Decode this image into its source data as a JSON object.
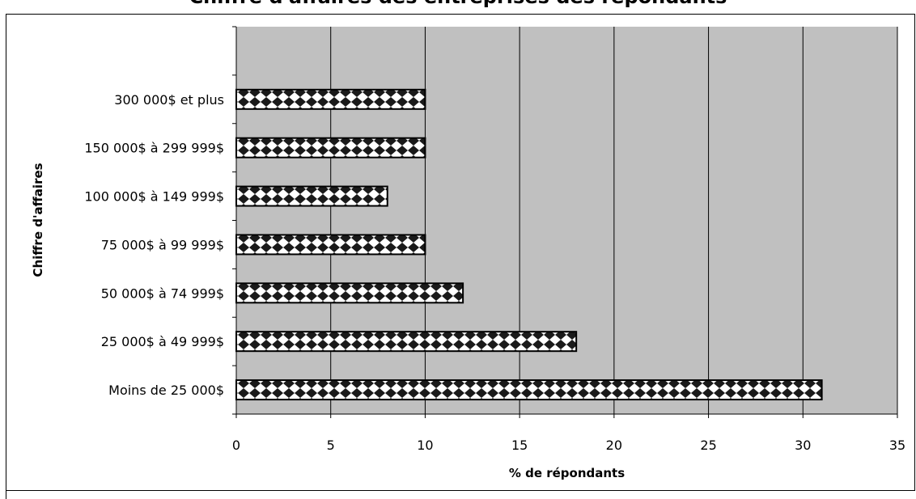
{
  "title": "Chiffre d'affaires des entreprises des répondants",
  "colors": {
    "plot_background": "#c0c0c0",
    "bar_fill_light": "#ffffff",
    "bar_fill_dark": "#1a1a1a",
    "axis": "#000000"
  },
  "chart_data": {
    "type": "bar",
    "orientation": "horizontal",
    "categories": [
      "Moins de 25 000$",
      "25 000$ à 49 999$",
      "50 000$ à 74 999$",
      "75 000$ à 99 999$",
      "100 000$ à 149 999$",
      "150 000$ à 299 999$",
      "300 000$ et plus"
    ],
    "values": [
      31,
      18,
      12,
      10,
      8,
      10,
      10
    ],
    "xlabel": "% de répondants",
    "ylabel": "Chiffre d'affaires",
    "xlim": [
      0,
      35
    ],
    "xticks": [
      "0",
      "5",
      "10",
      "15",
      "20",
      "25",
      "30",
      "35"
    ],
    "grid": "vertical",
    "legend": "none"
  }
}
